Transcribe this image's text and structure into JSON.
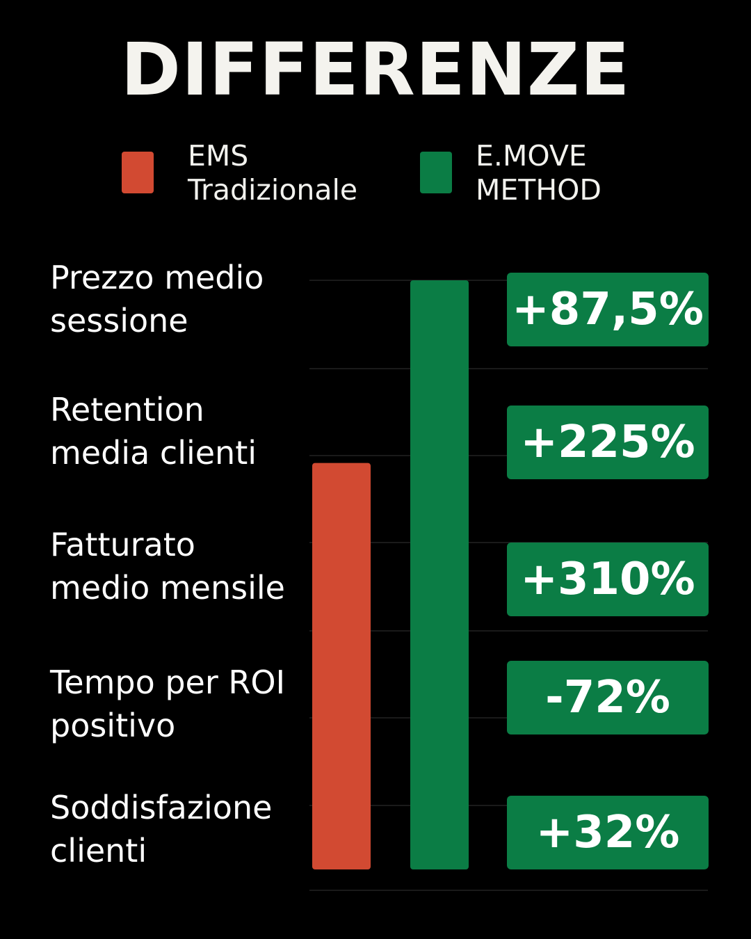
{
  "title": "DIFFERENZE",
  "colors": {
    "traditional": "#d24a32",
    "emove": "#0b7d45",
    "background": "#000000"
  },
  "legend": [
    {
      "label": "EMS\nTradizionale",
      "color": "#d24a32"
    },
    {
      "label": "E.MOVE\nMETHOD",
      "color": "#0b7d45"
    }
  ],
  "chart_data": {
    "type": "bar",
    "categories": [
      "Prezzo medio\nsessione",
      "Retention\nmedia clienti",
      "Fatturato\nmedio mensile",
      "Tempo per ROI\npositivo",
      "Soddisfazione\nclienti"
    ],
    "badges": [
      "+87,5%",
      "+225%",
      "+310%",
      "-72%",
      "+32%"
    ],
    "series": [
      {
        "name": "EMS Tradizionale",
        "value": 0.69,
        "color": "#d24a32"
      },
      {
        "name": "E.MOVE METHOD",
        "value": 1.0,
        "color": "#0b7d45"
      }
    ],
    "ylim": [
      0,
      1
    ],
    "grid": true
  }
}
